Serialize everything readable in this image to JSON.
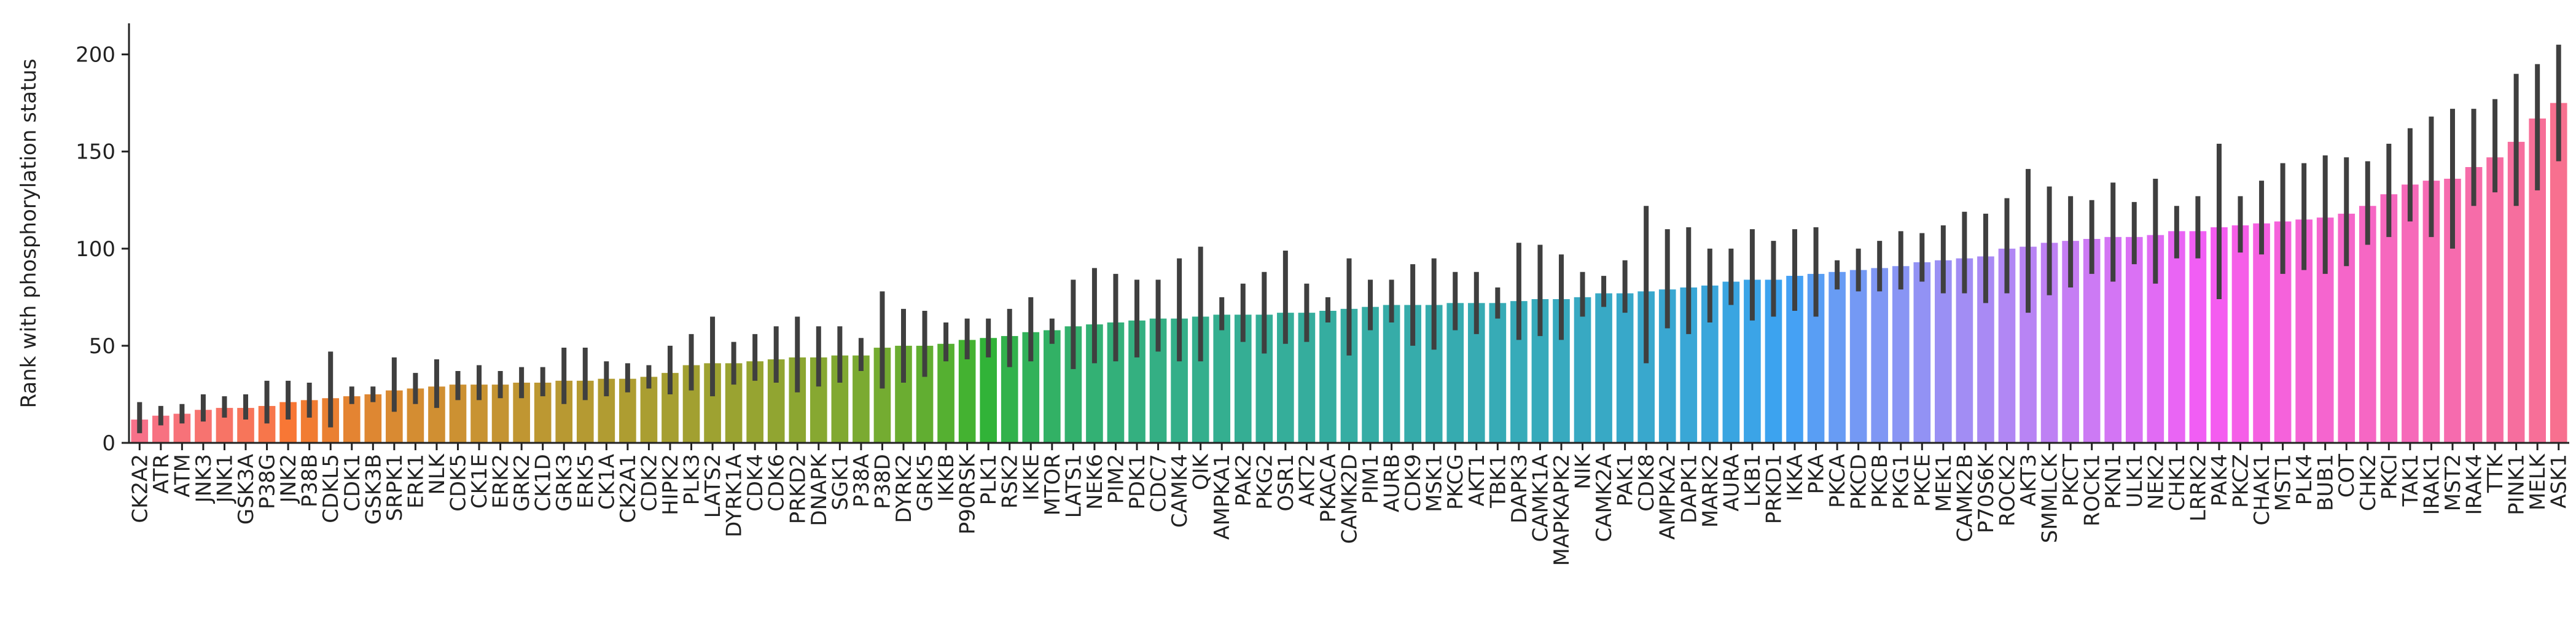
{
  "chart_data": {
    "type": "bar",
    "ylabel": "Rank with phosphorylation status",
    "categories": [
      "CK2A2",
      "ATR",
      "ATM",
      "JNK3",
      "JNK1",
      "GSK3A",
      "P38G",
      "JNK2",
      "P38B",
      "CDKL5",
      "CDK1",
      "GSK3B",
      "SRPK1",
      "ERK1",
      "NLK",
      "CDK5",
      "CK1E",
      "ERK2",
      "GRK2",
      "CK1D",
      "GRK3",
      "ERK5",
      "CK1A",
      "CK2A1",
      "CDK2",
      "HIPK2",
      "PLK3",
      "LATS2",
      "DYRK1A",
      "CDK4",
      "CDK6",
      "PRKD2",
      "DNAPK",
      "SGK1",
      "P38A",
      "P38D",
      "DYRK2",
      "GRK5",
      "IKKB",
      "P90RSK",
      "PLK1",
      "RSK2",
      "IKKE",
      "MTOR",
      "LATS1",
      "NEK6",
      "PIM2",
      "PDK1",
      "CDC7",
      "CAMK4",
      "QIK",
      "AMPKA1",
      "PAK2",
      "PKG2",
      "OSR1",
      "AKT2",
      "PKACA",
      "CAMK2D",
      "PIM1",
      "AURB",
      "CDK9",
      "MSK1",
      "PKCG",
      "AKT1",
      "TBK1",
      "DAPK3",
      "CAMK1A",
      "MAPKAPK2",
      "NIK",
      "CAMK2A",
      "PAK1",
      "CDK8",
      "AMPKA2",
      "DAPK1",
      "MARK2",
      "AURA",
      "LKB1",
      "PRKD1",
      "IKKA",
      "PKA",
      "PKCA",
      "PKCD",
      "PKCB",
      "PKG1",
      "PKCE",
      "MEK1",
      "CAMK2B",
      "P70S6K",
      "ROCK2",
      "AKT3",
      "SMMLCK",
      "PKCT",
      "ROCK1",
      "PKN1",
      "ULK1",
      "NEK2",
      "CHK1",
      "LRRK2",
      "PAK4",
      "PKCZ",
      "CHAK1",
      "MST1",
      "PLK4",
      "BUB1",
      "COT",
      "CHK2",
      "PKCI",
      "TAK1",
      "IRAK1",
      "MST2",
      "IRAK4",
      "TTK",
      "PINK1",
      "MELK",
      "ASK1"
    ],
    "values": [
      12,
      14,
      15,
      17,
      18,
      18,
      19,
      21,
      22,
      23,
      24,
      25,
      27,
      28,
      29,
      30,
      30,
      30,
      31,
      31,
      32,
      32,
      33,
      33,
      34,
      36,
      40,
      41,
      41,
      42,
      43,
      44,
      44,
      45,
      45,
      49,
      50,
      50,
      51,
      53,
      54,
      55,
      57,
      58,
      60,
      61,
      62,
      63,
      64,
      64,
      65,
      66,
      66,
      66,
      67,
      67,
      68,
      69,
      70,
      71,
      71,
      71,
      72,
      72,
      72,
      73,
      74,
      74,
      75,
      77,
      77,
      78,
      79,
      80,
      81,
      83,
      84,
      84,
      86,
      87,
      88,
      89,
      90,
      91,
      93,
      94,
      95,
      96,
      100,
      101,
      103,
      104,
      105,
      106,
      106,
      107,
      109,
      109,
      111,
      112,
      113,
      114,
      115,
      116,
      118,
      122,
      128,
      133,
      135,
      136,
      142,
      147,
      155,
      167,
      175
    ],
    "ci_low": [
      5,
      9,
      10,
      11,
      13,
      12,
      10,
      12,
      13,
      8,
      20,
      21,
      16,
      20,
      18,
      22,
      22,
      23,
      23,
      24,
      20,
      22,
      24,
      26,
      28,
      25,
      27,
      24,
      30,
      32,
      31,
      26,
      29,
      31,
      37,
      28,
      31,
      34,
      42,
      43,
      44,
      39,
      42,
      51,
      38,
      41,
      42,
      44,
      47,
      42,
      42,
      58,
      52,
      46,
      51,
      52,
      62,
      45,
      58,
      62,
      50,
      48,
      58,
      56,
      64,
      53,
      55,
      53,
      65,
      70,
      67,
      41,
      59,
      56,
      62,
      71,
      63,
      65,
      68,
      65,
      79,
      78,
      78,
      79,
      83,
      77,
      77,
      72,
      77,
      67,
      76,
      80,
      87,
      83,
      92,
      82,
      95,
      95,
      74,
      98,
      97,
      87,
      89,
      87,
      91,
      102,
      106,
      114,
      106,
      100,
      122,
      129,
      122,
      130,
      145
    ],
    "ci_high": [
      21,
      19,
      20,
      25,
      24,
      25,
      32,
      32,
      31,
      47,
      29,
      29,
      44,
      36,
      43,
      37,
      40,
      37,
      39,
      39,
      49,
      49,
      42,
      41,
      40,
      50,
      56,
      65,
      52,
      56,
      60,
      65,
      60,
      60,
      54,
      78,
      69,
      68,
      62,
      64,
      64,
      69,
      75,
      64,
      84,
      90,
      87,
      84,
      84,
      95,
      101,
      75,
      82,
      88,
      99,
      82,
      75,
      95,
      84,
      84,
      92,
      95,
      88,
      88,
      80,
      103,
      102,
      97,
      88,
      86,
      94,
      122,
      110,
      111,
      100,
      100,
      110,
      104,
      110,
      111,
      94,
      100,
      104,
      109,
      108,
      112,
      119,
      118,
      126,
      141,
      132,
      127,
      125,
      134,
      124,
      136,
      122,
      127,
      154,
      127,
      135,
      144,
      144,
      148,
      147,
      145,
      154,
      162,
      168,
      172,
      172,
      177,
      190,
      195,
      205
    ],
    "palette": "husl",
    "errorbar_color": "#3f3f3f",
    "ylim": [
      0,
      216
    ],
    "yticks": [
      0,
      50,
      100,
      150,
      200
    ]
  }
}
